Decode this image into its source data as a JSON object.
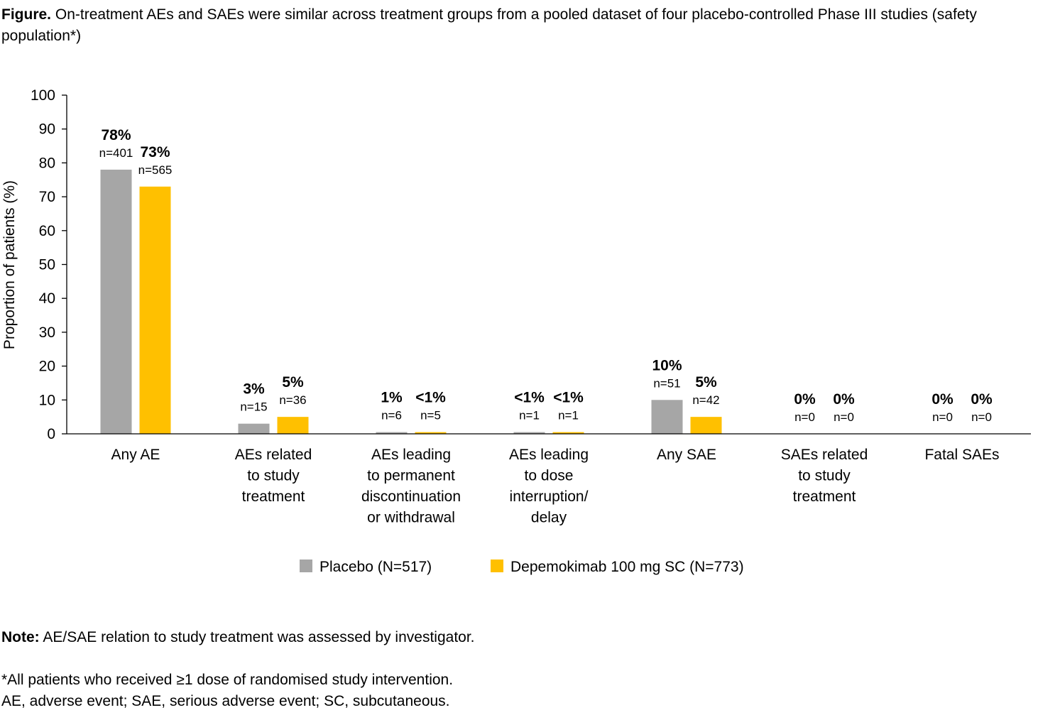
{
  "caption": {
    "label": "Figure.",
    "text": "On-treatment AEs and SAEs were similar across treatment groups from a pooled dataset of four placebo-controlled Phase III studies (safety population*)"
  },
  "note": {
    "label": "Note:",
    "text": "AE/SAE relation to study treatment was assessed by investigator."
  },
  "footnotes": [
    "*All patients who received ≥1 dose of randomised study intervention.",
    "AE, adverse event; SAE, serious adverse event; SC, subcutaneous."
  ],
  "chart_data": {
    "type": "bar",
    "title": "",
    "xlabel": "",
    "ylabel": "Proportion of patients (%)",
    "ylim": [
      0,
      100
    ],
    "yticks": [
      0,
      10,
      20,
      30,
      40,
      50,
      60,
      70,
      80,
      90,
      100
    ],
    "grid": false,
    "legend_position": "bottom",
    "categories": [
      [
        "Any AE"
      ],
      [
        "AEs related",
        "to study",
        "treatment"
      ],
      [
        "AEs leading",
        "to permanent",
        "discontinuation",
        "or withdrawal"
      ],
      [
        "AEs leading",
        "to dose",
        "interruption/",
        "delay"
      ],
      [
        "Any SAE"
      ],
      [
        "SAEs related",
        "to study",
        "treatment"
      ],
      [
        "Fatal SAEs"
      ]
    ],
    "series": [
      {
        "name": "Placebo (N=517)",
        "color": "#a6a6a6",
        "values": [
          78,
          3,
          0.5,
          0.5,
          10,
          0,
          0
        ],
        "pct_labels": [
          "78%",
          "3%",
          "1%",
          "<1%",
          "10%",
          "0%",
          "0%"
        ],
        "n_labels": [
          "n=401",
          "n=15",
          "n=6",
          "n=1",
          "n=51",
          "n=0",
          "n=0"
        ]
      },
      {
        "name": "Depemokimab 100 mg SC (N=773)",
        "color": "#ffc000",
        "values": [
          73,
          5,
          0.5,
          0.5,
          5,
          0,
          0
        ],
        "pct_labels": [
          "73%",
          "5%",
          "<1%",
          "<1%",
          "5%",
          "0%",
          "0%"
        ],
        "n_labels": [
          "n=565",
          "n=36",
          "n=5",
          "n=1",
          "n=42",
          "n=0",
          "n=0"
        ]
      }
    ]
  }
}
